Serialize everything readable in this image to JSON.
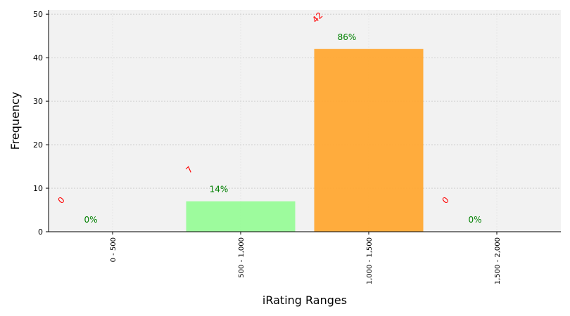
{
  "chart_data": {
    "type": "bar",
    "categories": [
      "0 - 500",
      "500 - 1,000",
      "1,000 - 1,500",
      "1,500 - 2,000"
    ],
    "values": [
      0,
      7,
      42,
      0
    ],
    "count_labels": [
      "0",
      "7",
      "42",
      "0"
    ],
    "percent_labels": [
      "0%",
      "14%",
      "86%",
      "0%"
    ],
    "bar_colors": [
      "#7fd47f",
      "#98fb98",
      "#ffa833",
      "#ffa833"
    ],
    "count_label_color": "#ff0000",
    "percent_label_color": "#008000",
    "background_color": "#f2f2f2",
    "xlabel": "iRating Ranges",
    "ylabel": "Frequency",
    "ylim": [
      0,
      51
    ],
    "yticks": [
      0,
      10,
      20,
      30,
      40,
      50
    ],
    "grid": true
  }
}
